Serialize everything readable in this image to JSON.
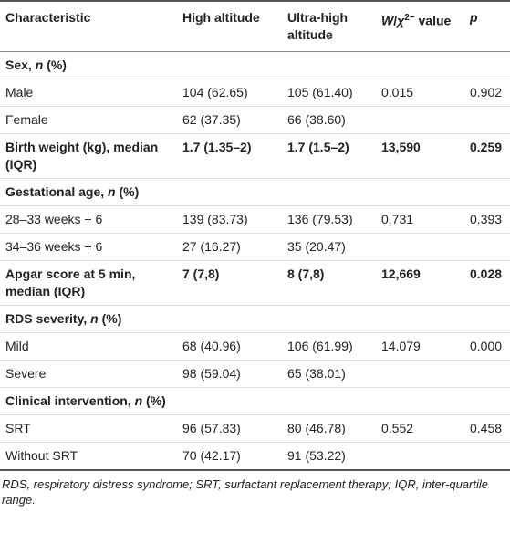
{
  "table": {
    "header": [
      "Characteristic",
      "High altitude",
      "Ultra-high altitude",
      [
        "W",
        "/",
        "χ",
        "2−",
        " value"
      ],
      "p"
    ],
    "sections": [
      {
        "heading": [
          "Sex, ",
          "n",
          " (%)"
        ],
        "rows": [
          {
            "label": "Male",
            "cells": [
              "104 (62.65)",
              "105 (61.40)",
              "0.015",
              "0.902"
            ]
          },
          {
            "label": "Female",
            "cells": [
              "62 (37.35)",
              "66 (38.60)"
            ]
          }
        ]
      },
      {
        "heading": [
          "Birth weight (kg), median (IQR)"
        ],
        "cells": [
          "1.7 (1.35–2)",
          "1.7 (1.5–2)",
          "13,590",
          "0.259"
        ]
      },
      {
        "heading": [
          "Gestational age, ",
          "n",
          " (%)"
        ],
        "rows": [
          {
            "label": "28–33 weeks + 6",
            "cells": [
              "139 (83.73)",
              "136 (79.53)",
              "0.731",
              "0.393"
            ]
          },
          {
            "label": "34–36 weeks + 6",
            "cells": [
              "27 (16.27)",
              "35 (20.47)"
            ]
          }
        ]
      },
      {
        "heading": [
          "Apgar score at 5 min, median (IQR)"
        ],
        "cells": [
          "7 (7,8)",
          "8 (7,8)",
          "12,669",
          "0.028"
        ]
      },
      {
        "heading": [
          "RDS severity, ",
          "n",
          " (%)"
        ],
        "rows": [
          {
            "label": "Mild",
            "cells": [
              "68 (40.96)",
              "106 (61.99)",
              "14.079",
              "0.000"
            ]
          },
          {
            "label": "Severe",
            "cells": [
              "98 (59.04)",
              "65 (38.01)"
            ]
          }
        ]
      },
      {
        "heading": [
          "Clinical intervention, ",
          "n",
          " (%)"
        ],
        "rows": [
          {
            "label": "SRT",
            "cells": [
              "96 (57.83)",
              "80 (46.78)",
              "0.552",
              "0.458"
            ]
          },
          {
            "label": "Without SRT",
            "cells": [
              "70 (42.17)",
              "91 (53.22)"
            ]
          }
        ]
      }
    ]
  },
  "footnote": "RDS, respiratory distress syndrome; SRT, surfactant replacement therapy; IQR, inter-quartile range."
}
